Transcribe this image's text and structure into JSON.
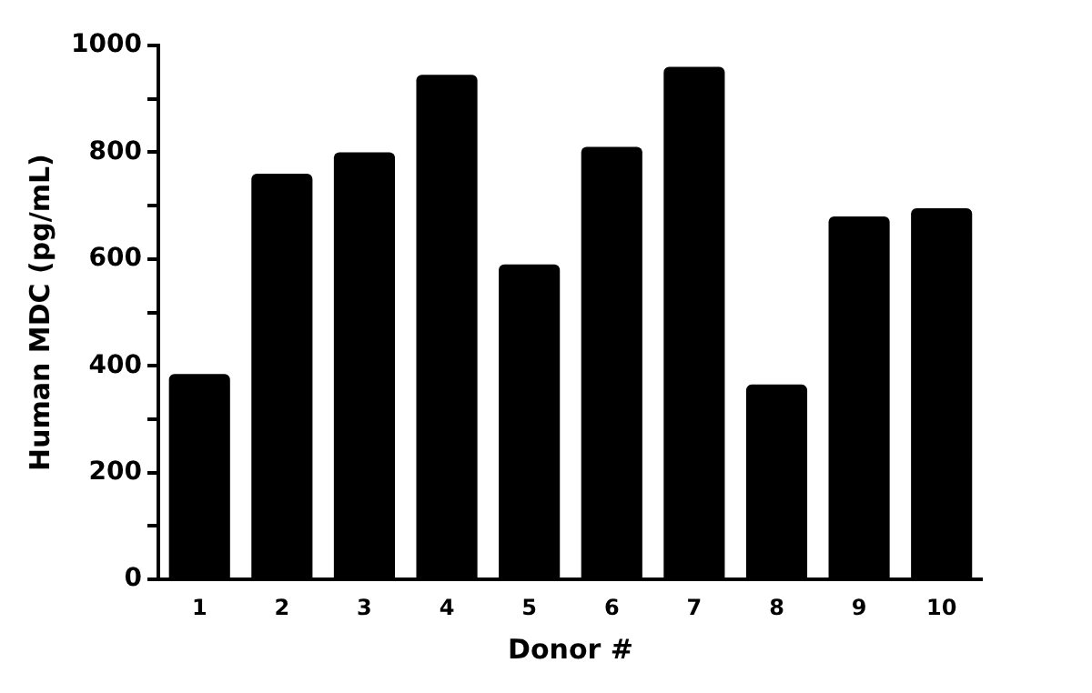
{
  "chart_data": {
    "type": "bar",
    "xlabel": "Donor #",
    "ylabel": "Human MDC (pg/mL)",
    "categories": [
      "1",
      "2",
      "3",
      "4",
      "5",
      "6",
      "7",
      "8",
      "9",
      "10"
    ],
    "values": [
      385,
      760,
      800,
      945,
      590,
      810,
      960,
      365,
      680,
      695
    ],
    "color": "#000000",
    "ylim": [
      0,
      1000
    ],
    "yticks": [
      0,
      {
        "value": 100,
        "label": null
      },
      200,
      {
        "value": 300,
        "label": null
      },
      400,
      {
        "value": 500,
        "label": null
      },
      600,
      {
        "value": 700,
        "label": null
      },
      800,
      {
        "value": 900,
        "label": null
      },
      1000
    ],
    "grid": false,
    "legend": false
  }
}
